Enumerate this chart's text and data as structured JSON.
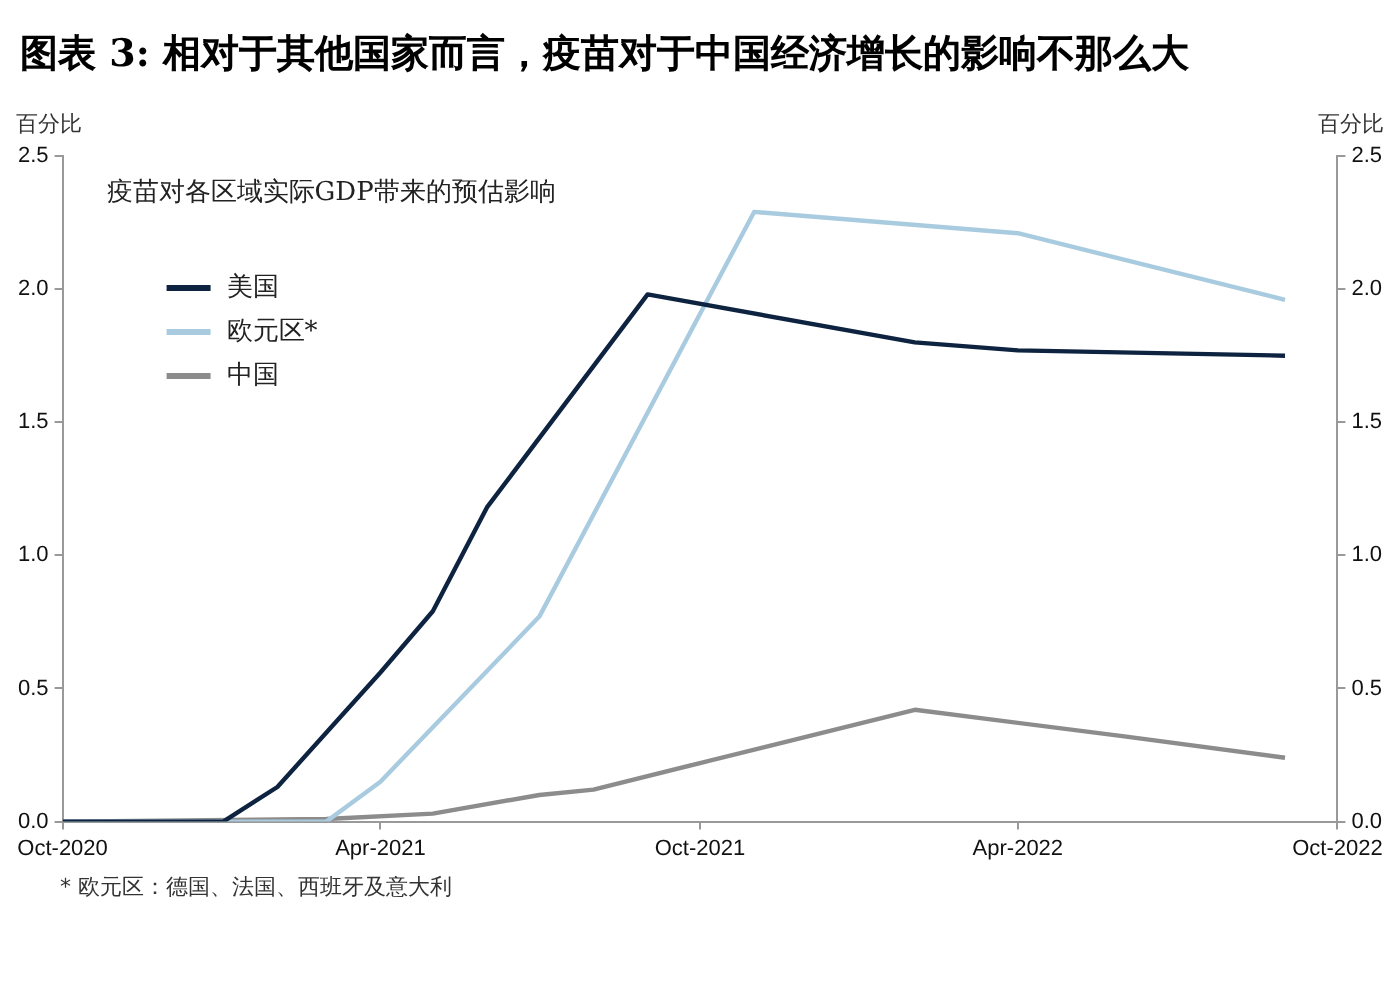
{
  "chart_data": {
    "type": "line",
    "title": "图表 3: 相对于其他国家而言，疫苗对于中国经济增长的影响不那么大",
    "subtitle": "疫苗对各区域实际GDP带来的预估影响",
    "ylabel": "百分比",
    "y2label": "百分比",
    "annotations": [
      "* 欧元区：德国、法国、西班牙及意大利"
    ],
    "series": [
      {
        "name": "美国",
        "color": "#0d2340",
        "x": [
          "2020-10",
          "2021-01",
          "2021-02",
          "2021-04",
          "2021-05",
          "2021-06",
          "2021-09",
          "2022-02",
          "2022-04",
          "2022-09"
        ],
        "values": [
          0,
          0,
          0.13,
          0.56,
          0.79,
          1.18,
          1.98,
          1.8,
          1.77,
          1.75
        ]
      },
      {
        "name": "欧元区*",
        "color": "#a9cbe0",
        "x": [
          "2020-10",
          "2021-03",
          "2021-04",
          "2021-07",
          "2021-11",
          "2022-04",
          "2022-09"
        ],
        "values": [
          0,
          0,
          0.15,
          0.77,
          2.29,
          2.21,
          1.96
        ]
      },
      {
        "name": "中国",
        "color": "#8c8c8c",
        "x": [
          "2020-10",
          "2021-03",
          "2021-05",
          "2021-07",
          "2021-08",
          "2021-10",
          "2022-02",
          "2022-06",
          "2022-09"
        ],
        "values": [
          0,
          0.01,
          0.03,
          0.1,
          0.12,
          0.22,
          0.42,
          0.32,
          0.24
        ]
      }
    ],
    "xlim": [
      "2020-10",
      "2022-10"
    ],
    "xticks": [
      {
        "value": "2020-10",
        "label": "Oct-2020"
      },
      {
        "value": "2021-04",
        "label": "Apr-2021"
      },
      {
        "value": "2021-10",
        "label": "Oct-2021"
      },
      {
        "value": "2022-04",
        "label": "Apr-2022"
      },
      {
        "value": "2022-10",
        "label": "Oct-2022"
      }
    ],
    "ylim": [
      0,
      2.5
    ],
    "yticks": [
      {
        "value": 0,
        "label": "0.0"
      },
      {
        "value": 0.5,
        "label": "0.5"
      },
      {
        "value": 1,
        "label": "1.0"
      },
      {
        "value": 1.5,
        "label": "1.5"
      },
      {
        "value": 2,
        "label": "2.0"
      },
      {
        "value": 2.5,
        "label": "2.5"
      }
    ],
    "y2lim": [
      0,
      2.5
    ],
    "y2ticks": [
      {
        "value": 0,
        "label": "0.0"
      },
      {
        "value": 0.5,
        "label": "0.5"
      },
      {
        "value": 1,
        "label": "1.0"
      },
      {
        "value": 1.5,
        "label": "1.5"
      },
      {
        "value": 2,
        "label": "2.0"
      },
      {
        "value": 2.5,
        "label": "2.5"
      }
    ],
    "grid": false,
    "legend": "top left",
    "marker": "none",
    "line_style": "solid"
  }
}
